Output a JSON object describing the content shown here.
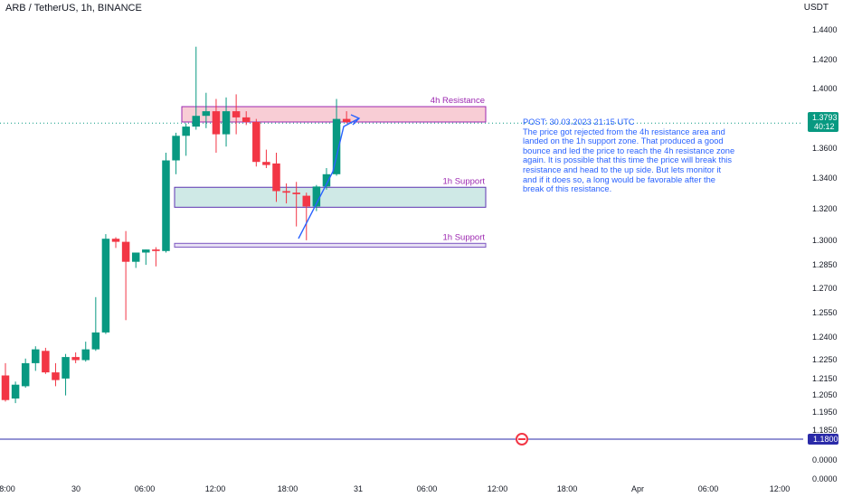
{
  "header": {
    "symbol_line": "ARB / TetherUS, 1h, BINANCE"
  },
  "axis": {
    "currency": "USDT"
  },
  "chart_data": {
    "type": "candlestick",
    "symbol": "ARB / TetherUS",
    "interval": "1h",
    "exchange": "BINANCE",
    "ylim": [
      0.0,
      1.455
    ],
    "y_ticks": [
      "1.4400",
      "1.4200",
      "1.4000",
      "1.3800",
      "1.3600",
      "1.3400",
      "1.3200",
      "1.3000",
      "1.2850",
      "1.2700",
      "1.2550",
      "1.2400",
      "1.2250",
      "1.2150",
      "1.2050",
      "1.1950",
      "1.1850",
      "0.0000",
      "0.0000"
    ],
    "x_ticks": [
      "8:00",
      "30",
      "06:00",
      "12:00",
      "18:00",
      "31",
      "06:00",
      "12:00",
      "18:00",
      "Apr",
      "06:00",
      "12:00"
    ],
    "candles": [
      {
        "o": 1.215,
        "h": 1.223,
        "l": 1.198,
        "c": 1.199
      },
      {
        "o": 1.2,
        "h": 1.211,
        "l": 1.197,
        "c": 1.209
      },
      {
        "o": 1.208,
        "h": 1.226,
        "l": 1.207,
        "c": 1.223
      },
      {
        "o": 1.223,
        "h": 1.234,
        "l": 1.218,
        "c": 1.232
      },
      {
        "o": 1.231,
        "h": 1.233,
        "l": 1.216,
        "c": 1.217
      },
      {
        "o": 1.217,
        "h": 1.223,
        "l": 1.208,
        "c": 1.212
      },
      {
        "o": 1.213,
        "h": 1.229,
        "l": 1.202,
        "c": 1.227
      },
      {
        "o": 1.227,
        "h": 1.23,
        "l": 1.223,
        "c": 1.225
      },
      {
        "o": 1.225,
        "h": 1.237,
        "l": 1.224,
        "c": 1.232
      },
      {
        "o": 1.232,
        "h": 1.266,
        "l": 1.231,
        "c": 1.243
      },
      {
        "o": 1.243,
        "h": 1.307,
        "l": 1.242,
        "c": 1.304
      },
      {
        "o": 1.304,
        "h": 1.305,
        "l": 1.298,
        "c": 1.302
      },
      {
        "o": 1.302,
        "h": 1.309,
        "l": 1.251,
        "c": 1.289
      },
      {
        "o": 1.289,
        "h": 1.292,
        "l": 1.285,
        "c": 1.295
      },
      {
        "o": 1.295,
        "h": 1.297,
        "l": 1.287,
        "c": 1.297
      },
      {
        "o": 1.297,
        "h": 1.2985,
        "l": 1.286,
        "c": 1.296
      },
      {
        "o": 1.296,
        "h": 1.36,
        "l": 1.295,
        "c": 1.355
      },
      {
        "o": 1.355,
        "h": 1.373,
        "l": 1.346,
        "c": 1.371
      },
      {
        "o": 1.371,
        "h": 1.379,
        "l": 1.358,
        "c": 1.377
      },
      {
        "o": 1.377,
        "h": 1.429,
        "l": 1.375,
        "c": 1.384
      },
      {
        "o": 1.384,
        "h": 1.399,
        "l": 1.376,
        "c": 1.387
      },
      {
        "o": 1.387,
        "h": 1.395,
        "l": 1.36,
        "c": 1.372
      },
      {
        "o": 1.372,
        "h": 1.396,
        "l": 1.364,
        "c": 1.387
      },
      {
        "o": 1.387,
        "h": 1.398,
        "l": 1.372,
        "c": 1.383
      },
      {
        "o": 1.383,
        "h": 1.387,
        "l": 1.378,
        "c": 1.38
      },
      {
        "o": 1.38,
        "h": 1.382,
        "l": 1.351,
        "c": 1.354
      },
      {
        "o": 1.354,
        "h": 1.362,
        "l": 1.35,
        "c": 1.352
      },
      {
        "o": 1.353,
        "h": 1.36,
        "l": 1.328,
        "c": 1.335
      },
      {
        "o": 1.335,
        "h": 1.34,
        "l": 1.327,
        "c": 1.334
      },
      {
        "o": 1.334,
        "h": 1.341,
        "l": 1.312,
        "c": 1.333
      },
      {
        "o": 1.332,
        "h": 1.334,
        "l": 1.303,
        "c": 1.325
      },
      {
        "o": 1.325,
        "h": 1.339,
        "l": 1.322,
        "c": 1.338
      },
      {
        "o": 1.338,
        "h": 1.35,
        "l": 1.336,
        "c": 1.346
      },
      {
        "o": 1.346,
        "h": 1.395,
        "l": 1.345,
        "c": 1.382
      },
      {
        "o": 1.382,
        "h": 1.387,
        "l": 1.379,
        "c": 1.38
      }
    ],
    "zones": [
      {
        "label": "4h Resistance",
        "top": 1.39,
        "bottom": 1.38,
        "fill": "#f8cdd5",
        "stroke": "#9c27b0"
      },
      {
        "label": "1h Support",
        "top": 1.3375,
        "bottom": 1.3245,
        "fill": "#cfe9e6",
        "stroke": "#5e35b1"
      },
      {
        "label": "1h Support",
        "top": 1.301,
        "bottom": 1.2985,
        "fill": "#e6e0f3",
        "stroke": "#7e57c2"
      }
    ],
    "current_price": {
      "value": "1.3793",
      "countdown": "40:12"
    },
    "alert_line": {
      "value": "1.1800"
    },
    "note": "POST: 30.03.2023 21:15 UTC\nThe price got rejected from the 4h resistance area and landed on the 1h support zone. That produced a good bounce and led the price to reach the 4h resistance zone again. It is possible that this time the price will break this resistance and head to the up side. But lets monitor it and if it does so, a long would be favorable after the break of this resistance.",
    "colors": {
      "up": "#089981",
      "down": "#f23645",
      "accent": "#2962ff",
      "zone_text": "#9c27b0"
    }
  }
}
